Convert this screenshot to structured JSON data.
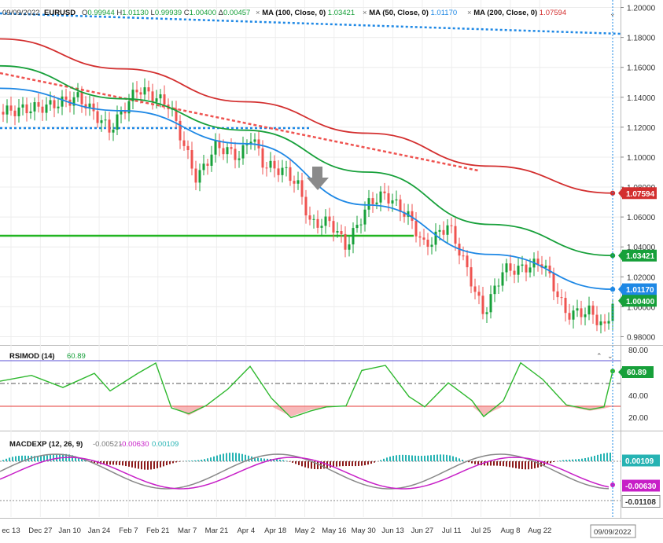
{
  "header": {
    "date": "09/09/2022",
    "symbol": "EURUSD",
    "ohlc": {
      "O": "0.99944",
      "H": "1.01130",
      "L": "0.99939",
      "C": "1.00400",
      "D": "0.00457"
    },
    "ma_labels": [
      {
        "name": "MA (100, Close, 0)",
        "value": "1.03421",
        "color": "#17a03a"
      },
      {
        "name": "MA (50, Close, 0)",
        "value": "1.01170",
        "color": "#1e88e5"
      },
      {
        "name": "MA (200, Close, 0)",
        "value": "1.07594",
        "color": "#d32f2f"
      }
    ]
  },
  "colors": {
    "up": "#17a03a",
    "down": "#ef5350",
    "ma50": "#1e88e5",
    "ma100": "#17a03a",
    "ma200": "#d32f2f",
    "rsi": "#2eb82e",
    "macd": "#888888",
    "signal": "#c71fc7",
    "hist_pos": "#26b3b3",
    "hist_neg": "#8b1a1a"
  },
  "price_axis": {
    "ticks": [
      "1.20000",
      "1.18000",
      "1.16000",
      "1.14000",
      "1.12000",
      "1.10000",
      "1.08000",
      "1.06000",
      "1.04000",
      "1.02000",
      "1.00000",
      "0.98000"
    ]
  },
  "price_badges": [
    {
      "text": "1.07594",
      "color": "#d32f2f"
    },
    {
      "text": "1.03421",
      "color": "#17a03a"
    },
    {
      "text": "1.01170",
      "color": "#1e88e5"
    },
    {
      "text": "1.00400",
      "color": "#17a03a"
    }
  ],
  "rsi": {
    "label": "RSIMOD (14)",
    "value": "60.89",
    "ticks": [
      "80.00",
      "40.00",
      "20.00"
    ]
  },
  "macd": {
    "label": "MACDEXP (12, 26, 9)",
    "v1": "-0.00521",
    "v2": "-0.00630",
    "v3": "0.00109",
    "badges": [
      {
        "text": "0.00109",
        "color": "#26b3b3"
      },
      {
        "text": "-0.00630",
        "color": "#c71fc7"
      },
      {
        "text": "-0.01108",
        "color": "#ffffff"
      }
    ]
  },
  "x_axis": {
    "labels": [
      "ec 13",
      "Dec 27",
      "Jan 10",
      "Jan 24",
      "Feb 7",
      "Feb 21",
      "Mar 7",
      "Mar 21",
      "Apr 4",
      "Apr 18",
      "May 2",
      "May 16",
      "May 30",
      "Jun 13",
      "Jun 27",
      "Jul 11",
      "Jul 25",
      "Aug 8",
      "Aug 22"
    ],
    "current": "09/09/2022"
  },
  "chart_data": {
    "type": "line",
    "title": "EURUSD",
    "series": [
      {
        "name": "MA (200, Close, 0)",
        "x": [
          "Dec 13",
          "Feb 7",
          "Apr 4",
          "May 30",
          "Jul 25",
          "Sep 9"
        ],
        "values": [
          1.179,
          1.159,
          1.137,
          1.116,
          1.094,
          1.07594
        ]
      },
      {
        "name": "MA (100, Close, 0)",
        "x": [
          "Dec 13",
          "Feb 7",
          "Apr 4",
          "May 30",
          "Jul 25",
          "Sep 9"
        ],
        "values": [
          1.161,
          1.139,
          1.118,
          1.09,
          1.055,
          1.03421
        ]
      },
      {
        "name": "MA (50, Close, 0)",
        "x": [
          "Dec 13",
          "Feb 7",
          "Apr 4",
          "May 30",
          "Jul 25",
          "Sep 9"
        ],
        "values": [
          1.146,
          1.131,
          1.109,
          1.068,
          1.035,
          1.0117
        ]
      },
      {
        "name": "RSIMOD (14)",
        "x": [
          "Dec 13",
          "Mar 7",
          "May 2",
          "Jun 27",
          "Sep 9"
        ],
        "values": [
          52,
          22,
          21,
          27,
          60.89
        ]
      }
    ],
    "ylim": [
      0.975,
      1.205
    ]
  }
}
